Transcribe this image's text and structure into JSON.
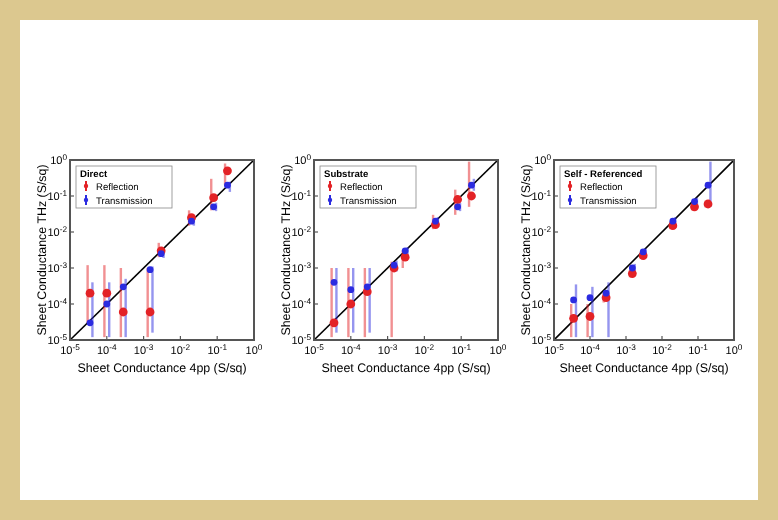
{
  "chart_data": [
    {
      "type": "scatter",
      "legend_title": "Direct",
      "xlabel": "Sheet Conductance 4pp (S/sq)",
      "ylabel": "Sheet Conductance THz (S/sq)",
      "log": "xy",
      "legend": "top left",
      "marker": "circle",
      "xlim": [
        1e-05,
        1
      ],
      "ylim": [
        1e-05,
        1
      ],
      "xticks": [
        {
          "value": 1e-05,
          "label": "10$^{-5}$"
        },
        {
          "value": 0.0001,
          "label": "10$^{-4}$"
        },
        {
          "value": 0.001,
          "label": "10$^{-3}$"
        },
        {
          "value": 0.01,
          "label": "10$^{-2}$"
        },
        {
          "value": 0.1,
          "label": "10$^{-1}$"
        },
        {
          "value": 1,
          "label": "10$^{0}$"
        }
      ],
      "yticks": [
        {
          "value": 1e-05,
          "label": "10$^{-5}$"
        },
        {
          "value": 0.0001,
          "label": "10$^{-4}$"
        },
        {
          "value": 0.001,
          "label": "10$^{-3}$"
        },
        {
          "value": 0.01,
          "label": "10$^{-2}$"
        },
        {
          "value": 0.1,
          "label": "10$^{-1}$"
        },
        {
          "value": 1,
          "label": "10$^{0}$"
        }
      ],
      "series": [
        {
          "type": "line",
          "marker": "none",
          "color": "#000000",
          "x": [
            1e-05,
            1
          ],
          "values": [
            1e-05,
            1
          ]
        },
        {
          "name": "Reflection",
          "color": "#e32226",
          "x": [
            3.5e-05,
            0.0001,
            0.00028,
            0.0015,
            0.003,
            0.02,
            0.08,
            0.19
          ],
          "values": [
            0.0002,
            0.0002,
            6e-05,
            6e-05,
            0.003,
            0.025,
            0.09,
            0.5
          ],
          "errors": [
            [
              3e-05,
              0.0012
            ],
            [
              1.2e-05,
              0.0012
            ],
            [
              1.2e-05,
              0.001
            ],
            [
              1.2e-05,
              0.001
            ],
            [
              0.002,
              0.005
            ],
            [
              0.015,
              0.04
            ],
            [
              0.04,
              0.3
            ],
            [
              0.2,
              0.8
            ]
          ]
        },
        {
          "name": "Transmission",
          "color": "#2b2be0",
          "x": [
            3.5e-05,
            0.0001,
            0.00028,
            0.0015,
            0.003,
            0.02,
            0.08,
            0.19
          ],
          "values": [
            3e-05,
            0.0001,
            0.0003,
            0.0009,
            0.0025,
            0.02,
            0.05,
            0.2
          ],
          "errors": [
            [
              1.2e-05,
              0.0004
            ],
            [
              1.2e-05,
              0.0004
            ],
            [
              1.2e-05,
              0.0005
            ],
            [
              1.6e-05,
              0.0011
            ],
            [
              0.0019,
              0.0033
            ],
            [
              0.015,
              0.026
            ],
            [
              0.038,
              0.065
            ],
            [
              0.13,
              0.25
            ]
          ]
        }
      ]
    },
    {
      "type": "scatter",
      "legend_title": "Substrate",
      "xlabel": "Sheet Conductance 4pp (S/sq)",
      "ylabel": "Sheet Conductance THz (S/sq)",
      "log": "xy",
      "legend": "top left",
      "marker": "circle",
      "xlim": [
        1e-05,
        1
      ],
      "ylim": [
        1e-05,
        1
      ],
      "xticks": [
        {
          "value": 1e-05,
          "label": "10$^{-5}$"
        },
        {
          "value": 0.0001,
          "label": "10$^{-4}$"
        },
        {
          "value": 0.001,
          "label": "10$^{-3}$"
        },
        {
          "value": 0.01,
          "label": "10$^{-2}$"
        },
        {
          "value": 0.1,
          "label": "10$^{-1}$"
        },
        {
          "value": 1,
          "label": "10$^{0}$"
        }
      ],
      "yticks": [
        {
          "value": 1e-05,
          "label": "10$^{-5}$"
        },
        {
          "value": 0.0001,
          "label": "10$^{-4}$"
        },
        {
          "value": 0.001,
          "label": "10$^{-3}$"
        },
        {
          "value": 0.01,
          "label": "10$^{-2}$"
        },
        {
          "value": 0.1,
          "label": "10$^{-1}$"
        },
        {
          "value": 1,
          "label": "10$^{0}$"
        }
      ],
      "series": [
        {
          "type": "line",
          "marker": "none",
          "color": "#000000",
          "x": [
            1e-05,
            1
          ],
          "values": [
            1e-05,
            1
          ]
        },
        {
          "name": "Reflection",
          "color": "#e32226",
          "x": [
            3.5e-05,
            0.0001,
            0.00028,
            0.0015,
            0.003,
            0.02,
            0.08,
            0.19
          ],
          "values": [
            3e-05,
            0.0001,
            0.00022,
            0.001,
            0.002,
            0.016,
            0.08,
            0.1
          ],
          "errors": [
            [
              1.2e-05,
              0.001
            ],
            [
              1.2e-05,
              0.001
            ],
            [
              1.2e-05,
              0.001
            ],
            [
              1.2e-05,
              0.0015
            ],
            [
              0.001,
              0.003
            ],
            [
              0.012,
              0.03
            ],
            [
              0.03,
              0.15
            ],
            [
              0.05,
              0.9
            ]
          ]
        },
        {
          "name": "Transmission",
          "color": "#2b2be0",
          "x": [
            3.5e-05,
            0.0001,
            0.00028,
            0.0015,
            0.003,
            0.02,
            0.08,
            0.19
          ],
          "values": [
            0.0004,
            0.00025,
            0.0003,
            0.0012,
            0.003,
            0.02,
            0.05,
            0.2
          ],
          "errors": [
            [
              1.6e-05,
              0.001
            ],
            [
              1.6e-05,
              0.001
            ],
            [
              1.6e-05,
              0.001
            ],
            [
              0.0008,
              0.0016
            ],
            [
              0.0023,
              0.0038
            ],
            [
              0.016,
              0.026
            ],
            [
              0.038,
              0.065
            ],
            [
              0.14,
              0.3
            ]
          ]
        }
      ]
    },
    {
      "type": "scatter",
      "legend_title": "Self - Referenced",
      "xlabel": "Sheet Conductance 4pp (S/sq)",
      "ylabel": "Sheet Conductance THz (S/sq)",
      "log": "xy",
      "legend": "top left",
      "marker": "circle",
      "xlim": [
        1e-05,
        1
      ],
      "ylim": [
        1e-05,
        1
      ],
      "xticks": [
        {
          "value": 1e-05,
          "label": "10$^{-5}$"
        },
        {
          "value": 0.0001,
          "label": "10$^{-4}$"
        },
        {
          "value": 0.001,
          "label": "10$^{-3}$"
        },
        {
          "value": 0.01,
          "label": "10$^{-2}$"
        },
        {
          "value": 0.1,
          "label": "10$^{-1}$"
        },
        {
          "value": 1,
          "label": "10$^{0}$"
        }
      ],
      "yticks": [
        {
          "value": 1e-05,
          "label": "10$^{-5}$"
        },
        {
          "value": 0.0001,
          "label": "10$^{-4}$"
        },
        {
          "value": 0.001,
          "label": "10$^{-3}$"
        },
        {
          "value": 0.01,
          "label": "10$^{-2}$"
        },
        {
          "value": 0.1,
          "label": "10$^{-1}$"
        },
        {
          "value": 1,
          "label": "10$^{0}$"
        }
      ],
      "series": [
        {
          "type": "line",
          "marker": "none",
          "color": "#000000",
          "x": [
            1e-05,
            1
          ],
          "values": [
            1e-05,
            1
          ]
        },
        {
          "name": "Reflection",
          "color": "#e32226",
          "x": [
            3.5e-05,
            0.0001,
            0.00028,
            0.0015,
            0.003,
            0.02,
            0.08,
            0.19
          ],
          "values": [
            4e-05,
            4.5e-05,
            0.00015,
            0.0007,
            0.0022,
            0.015,
            0.05,
            0.06
          ],
          "errors": [
            [
              1.2e-05,
              0.0001
            ],
            [
              1.2e-05,
              0.0001
            ],
            [
              0.00011,
              0.0002
            ],
            [
              0.00055,
              0.00085
            ],
            [
              0.0018,
              0.0028
            ],
            [
              0.012,
              0.019
            ],
            [
              0.04,
              0.062
            ],
            [
              0.048,
              0.075
            ]
          ]
        },
        {
          "name": "Transmission",
          "color": "#2b2be0",
          "x": [
            3.5e-05,
            0.0001,
            0.00028,
            0.0015,
            0.003,
            0.02,
            0.08,
            0.19
          ],
          "values": [
            0.00013,
            0.00015,
            0.0002,
            0.001,
            0.0028,
            0.02,
            0.07,
            0.2
          ],
          "errors": [
            [
              1.2e-05,
              0.00035
            ],
            [
              1.2e-05,
              0.0003
            ],
            [
              1.2e-05,
              0.0004
            ],
            [
              0.00075,
              0.0013
            ],
            [
              0.0022,
              0.0035
            ],
            [
              0.016,
              0.026
            ],
            [
              0.055,
              0.09
            ],
            [
              0.05,
              0.9
            ]
          ]
        }
      ]
    }
  ]
}
